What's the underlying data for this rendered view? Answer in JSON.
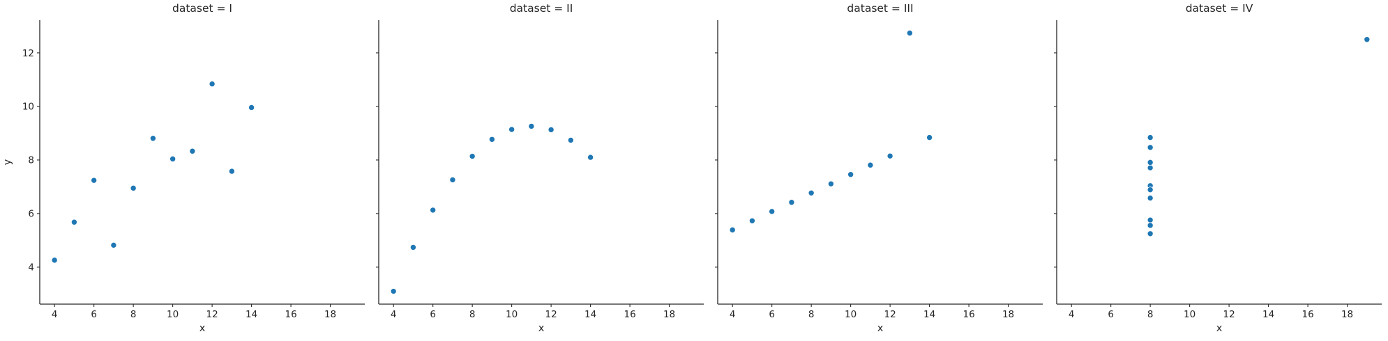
{
  "figure": {
    "kind": "seaborn-facetgrid-scatter",
    "background_color": "#ffffff",
    "point_color": "#1f77b4",
    "point_edge_color": "#ffffff",
    "axis_color": "#262626",
    "text_color": "#262626"
  },
  "chart_data": [
    {
      "type": "scatter",
      "title": "dataset = I",
      "xlabel": "x",
      "ylabel": "y",
      "x": [
        10,
        8,
        13,
        9,
        11,
        14,
        6,
        4,
        12,
        7,
        5
      ],
      "y": [
        8.04,
        6.95,
        7.58,
        8.81,
        8.33,
        9.96,
        7.24,
        4.26,
        10.84,
        4.82,
        5.68
      ],
      "xlim": [
        3.25,
        19.75
      ],
      "ylim": [
        2.62,
        13.22
      ],
      "xticks": [
        4,
        6,
        8,
        10,
        12,
        14,
        16,
        18
      ],
      "yticks": [
        4,
        6,
        8,
        10,
        12
      ],
      "show_yticklabels": true,
      "grid": false,
      "legend": "none"
    },
    {
      "type": "scatter",
      "title": "dataset = II",
      "xlabel": "x",
      "ylabel": "",
      "x": [
        10,
        8,
        13,
        9,
        11,
        14,
        6,
        4,
        12,
        7,
        5
      ],
      "y": [
        9.14,
        8.14,
        8.74,
        8.77,
        9.26,
        8.1,
        6.13,
        3.1,
        9.13,
        7.26,
        4.74
      ],
      "xlim": [
        3.25,
        19.75
      ],
      "ylim": [
        2.62,
        13.22
      ],
      "xticks": [
        4,
        6,
        8,
        10,
        12,
        14,
        16,
        18
      ],
      "yticks": [
        4,
        6,
        8,
        10,
        12
      ],
      "show_yticklabels": false,
      "grid": false,
      "legend": "none"
    },
    {
      "type": "scatter",
      "title": "dataset = III",
      "xlabel": "x",
      "ylabel": "",
      "x": [
        10,
        8,
        13,
        9,
        11,
        14,
        6,
        4,
        12,
        7,
        5
      ],
      "y": [
        7.46,
        6.77,
        12.74,
        7.11,
        7.81,
        8.84,
        6.08,
        5.39,
        8.15,
        6.42,
        5.73
      ],
      "xlim": [
        3.25,
        19.75
      ],
      "ylim": [
        2.62,
        13.22
      ],
      "xticks": [
        4,
        6,
        8,
        10,
        12,
        14,
        16,
        18
      ],
      "yticks": [
        4,
        6,
        8,
        10,
        12
      ],
      "show_yticklabels": false,
      "grid": false,
      "legend": "none"
    },
    {
      "type": "scatter",
      "title": "dataset = IV",
      "xlabel": "x",
      "ylabel": "",
      "x": [
        8,
        8,
        8,
        8,
        8,
        8,
        8,
        19,
        8,
        8,
        8
      ],
      "y": [
        6.58,
        5.76,
        7.71,
        8.84,
        8.47,
        7.04,
        5.25,
        12.5,
        5.56,
        7.91,
        6.89
      ],
      "xlim": [
        3.25,
        19.75
      ],
      "ylim": [
        2.62,
        13.22
      ],
      "xticks": [
        4,
        6,
        8,
        10,
        12,
        14,
        16,
        18
      ],
      "yticks": [
        4,
        6,
        8,
        10,
        12
      ],
      "show_yticklabels": false,
      "grid": false,
      "legend": "none"
    }
  ]
}
